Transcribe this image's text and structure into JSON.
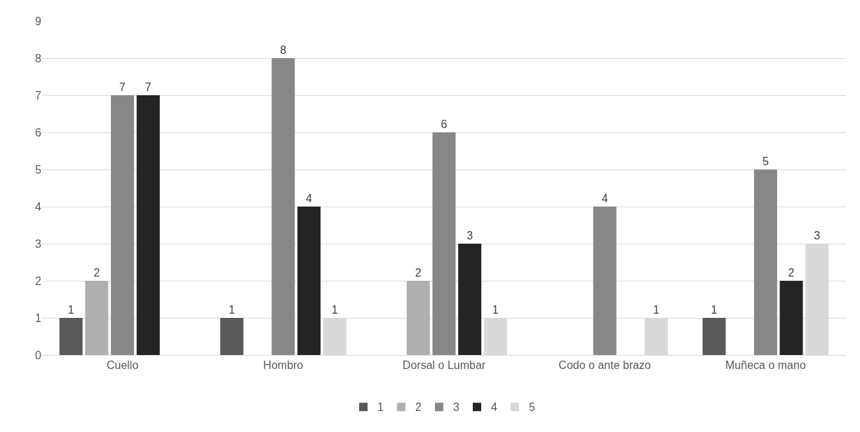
{
  "chart_data": {
    "type": "bar",
    "categories": [
      "Cuello",
      "Hombro",
      "Dorsal o Lumbar",
      "Codo o ante brazo",
      "Muñeca o mano"
    ],
    "series": [
      {
        "name": "1",
        "color": "#595959",
        "values": [
          1,
          1,
          null,
          null,
          1
        ]
      },
      {
        "name": "2",
        "color": "#afafaf",
        "values": [
          2,
          null,
          2,
          null,
          null
        ]
      },
      {
        "name": "3",
        "color": "#878787",
        "values": [
          7,
          8,
          6,
          4,
          5
        ]
      },
      {
        "name": "4",
        "color": "#242424",
        "values": [
          7,
          4,
          3,
          null,
          2
        ]
      },
      {
        "name": "5",
        "color": "#d9d9d9",
        "values": [
          null,
          1,
          1,
          1,
          3
        ]
      }
    ],
    "ylim": [
      0,
      9
    ],
    "yticks": [
      0,
      1,
      2,
      3,
      4,
      5,
      6,
      7,
      8,
      9
    ],
    "grid": "y",
    "legend": "bottom",
    "data_labels": true
  }
}
